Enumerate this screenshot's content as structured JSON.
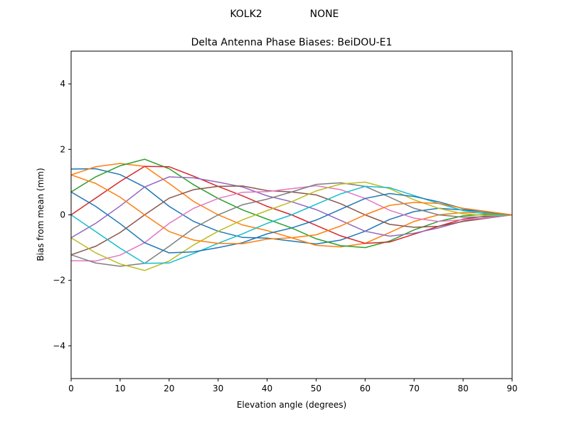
{
  "suptitle": {
    "left": "KOLK2",
    "right": "NONE"
  },
  "chart_data": {
    "type": "line",
    "title": "Delta Antenna Phase Biases: BeiDOU-E1",
    "xlabel": "Elevation angle (degrees)",
    "ylabel": "Bias from mean (mm)",
    "xlim": [
      0,
      90
    ],
    "ylim": [
      -5,
      5
    ],
    "xticks": [
      0,
      10,
      20,
      30,
      40,
      50,
      60,
      70,
      80,
      90
    ],
    "yticks": [
      -4,
      -2,
      0,
      2,
      4
    ],
    "ytick_labels": [
      "−4",
      "−2",
      "0",
      "2",
      "4"
    ],
    "grid": false,
    "legend": "none",
    "colors": [
      "#1f77b4",
      "#ff7f0e",
      "#2ca02c",
      "#d62728",
      "#9467bd",
      "#8c564b",
      "#e377c2",
      "#7f7f7f",
      "#bcbd22",
      "#17becf"
    ],
    "x": [
      0,
      5,
      10,
      15,
      20,
      25,
      30,
      35,
      40,
      45,
      50,
      55,
      60,
      65,
      70,
      75,
      80,
      85,
      90
    ],
    "series": [
      {
        "values": [
          1.4,
          1.41,
          1.23,
          0.85,
          0.26,
          -0.2,
          -0.5,
          -0.69,
          -0.71,
          -0.8,
          -0.89,
          -0.77,
          -0.5,
          -0.14,
          0.1,
          0.2,
          0.15,
          0.09,
          0
        ]
      },
      {
        "values": [
          1.22,
          1.47,
          1.57,
          1.48,
          0.96,
          0.41,
          0,
          -0.31,
          -0.48,
          -0.7,
          -0.93,
          -0.98,
          -0.87,
          -0.54,
          -0.2,
          0,
          0.07,
          0.06,
          0
        ]
      },
      {
        "values": [
          0.7,
          1.16,
          1.5,
          1.7,
          1.41,
          0.92,
          0.5,
          0.15,
          -0.13,
          -0.4,
          -0.73,
          -0.94,
          -1,
          -0.8,
          -0.46,
          -0.2,
          -0.03,
          0.02,
          0
        ]
      },
      {
        "values": [
          0,
          0.51,
          1.02,
          1.48,
          1.47,
          1.18,
          0.87,
          0.58,
          0.26,
          0,
          -0.32,
          -0.64,
          -0.87,
          -0.83,
          -0.59,
          -0.35,
          -0.13,
          -0.03,
          0
        ]
      },
      {
        "values": [
          -0.7,
          -0.26,
          0.27,
          0.85,
          1.16,
          1.13,
          1,
          0.85,
          0.58,
          0.4,
          0.16,
          -0.17,
          -0.5,
          -0.65,
          -0.56,
          -0.4,
          -0.19,
          -0.08,
          0
        ]
      },
      {
        "values": [
          -1.22,
          -0.96,
          -0.54,
          0,
          0.51,
          0.77,
          0.87,
          0.88,
          0.74,
          0.7,
          0.61,
          0.34,
          0,
          -0.29,
          -0.38,
          -0.35,
          -0.2,
          -0.1,
          0
        ]
      },
      {
        "values": [
          -1.4,
          -1.41,
          -1.23,
          -0.85,
          -0.26,
          0.2,
          0.5,
          0.69,
          0.71,
          0.8,
          0.89,
          0.77,
          0.5,
          0.14,
          -0.1,
          -0.2,
          -0.15,
          -0.09,
          0
        ]
      },
      {
        "values": [
          -1.22,
          -1.47,
          -1.57,
          -1.48,
          -0.96,
          -0.41,
          0,
          0.31,
          0.48,
          0.7,
          0.93,
          0.98,
          0.87,
          0.54,
          0.2,
          0,
          -0.07,
          -0.06,
          0
        ]
      },
      {
        "values": [
          -0.7,
          -1.16,
          -1.5,
          -1.7,
          -1.41,
          -0.92,
          -0.5,
          -0.15,
          0.13,
          0.4,
          0.73,
          0.94,
          1,
          0.8,
          0.46,
          0.2,
          0.03,
          -0.02,
          0
        ]
      },
      {
        "values": [
          0,
          -0.51,
          -1.02,
          -1.48,
          -1.47,
          -1.18,
          -0.87,
          -0.58,
          -0.26,
          0,
          0.32,
          0.64,
          0.87,
          0.83,
          0.59,
          0.35,
          0.13,
          0.03,
          0
        ]
      },
      {
        "values": [
          0.7,
          0.26,
          -0.27,
          -0.85,
          -1.16,
          -1.13,
          -1,
          -0.85,
          -0.58,
          -0.4,
          -0.16,
          0.17,
          0.5,
          0.65,
          0.56,
          0.4,
          0.19,
          0.08,
          0
        ]
      },
      {
        "values": [
          1.22,
          0.96,
          0.54,
          0,
          -0.51,
          -0.77,
          -0.87,
          -0.88,
          -0.74,
          -0.7,
          -0.61,
          -0.34,
          0,
          0.29,
          0.38,
          0.35,
          0.2,
          0.1,
          0
        ]
      }
    ]
  }
}
